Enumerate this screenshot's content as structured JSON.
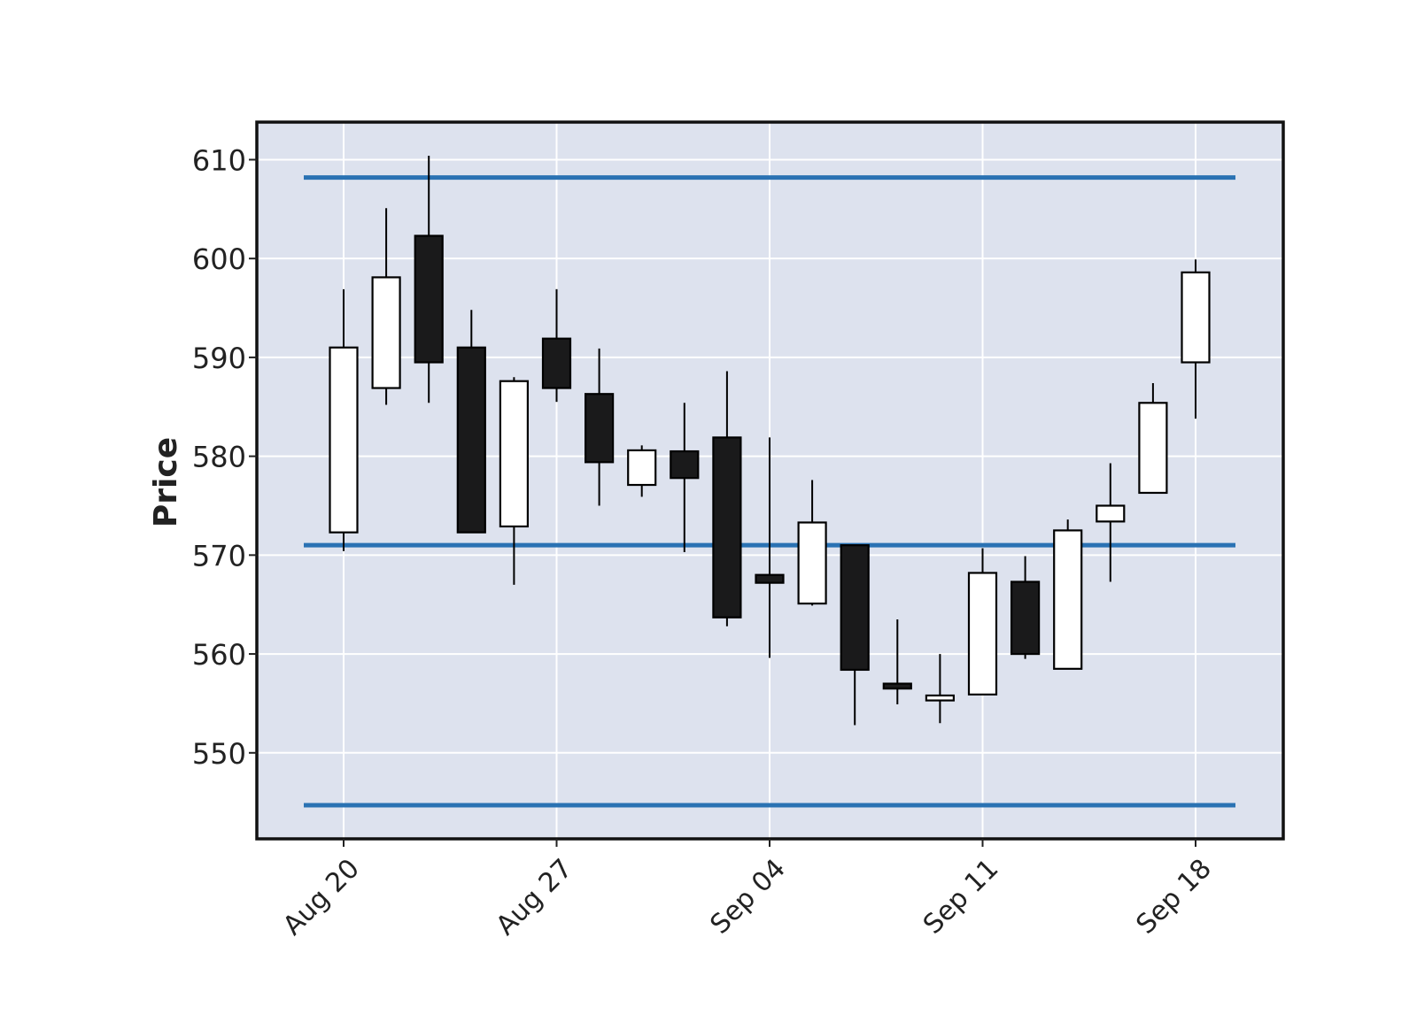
{
  "chart_data": {
    "type": "candlestick",
    "title": "",
    "xlabel": "",
    "ylabel": "Price",
    "ylim": [
      541.3,
      613.8
    ],
    "yticks": [
      550,
      560,
      570,
      580,
      590,
      600,
      610
    ],
    "x_tick_labels": [
      {
        "index": 0,
        "label": "Aug 20"
      },
      {
        "index": 5,
        "label": "Aug 27"
      },
      {
        "index": 10,
        "label": "Sep 04"
      },
      {
        "index": 15,
        "label": "Sep 11"
      },
      {
        "index": 20,
        "label": "Sep 18"
      }
    ],
    "grid": true,
    "up_color": "#ffffff",
    "down_color": "#1a1a1b",
    "edge_color": "#000000",
    "background_color": "#dde2ee",
    "hline_color": "#2a72b3",
    "horizontal_lines": [
      608.2,
      571.0,
      544.7
    ],
    "candles": [
      {
        "open": 572.3,
        "high": 596.9,
        "low": 570.4,
        "close": 591.0
      },
      {
        "open": 586.9,
        "high": 605.1,
        "low": 585.2,
        "close": 598.1
      },
      {
        "open": 602.3,
        "high": 610.4,
        "low": 585.4,
        "close": 589.5
      },
      {
        "open": 591.0,
        "high": 594.8,
        "low": 572.3,
        "close": 572.3
      },
      {
        "open": 572.9,
        "high": 588.0,
        "low": 567.0,
        "close": 587.6
      },
      {
        "open": 591.9,
        "high": 596.9,
        "low": 585.5,
        "close": 586.9
      },
      {
        "open": 586.3,
        "high": 590.9,
        "low": 575.0,
        "close": 579.4
      },
      {
        "open": 577.1,
        "high": 581.1,
        "low": 575.9,
        "close": 580.6
      },
      {
        "open": 580.5,
        "high": 585.4,
        "low": 570.3,
        "close": 577.8
      },
      {
        "open": 581.9,
        "high": 588.6,
        "low": 562.8,
        "close": 563.7
      },
      {
        "open": 568.0,
        "high": 581.9,
        "low": 559.6,
        "close": 567.2
      },
      {
        "open": 565.1,
        "high": 577.6,
        "low": 564.9,
        "close": 573.3
      },
      {
        "open": 571.0,
        "high": 571.0,
        "low": 552.8,
        "close": 558.4
      },
      {
        "open": 557.0,
        "high": 563.5,
        "low": 554.9,
        "close": 556.5
      },
      {
        "open": 555.3,
        "high": 560.0,
        "low": 553.0,
        "close": 555.8
      },
      {
        "open": 555.9,
        "high": 570.7,
        "low": 555.9,
        "close": 568.2
      },
      {
        "open": 567.3,
        "high": 569.9,
        "low": 559.5,
        "close": 560.0
      },
      {
        "open": 558.5,
        "high": 573.6,
        "low": 558.5,
        "close": 572.5
      },
      {
        "open": 573.4,
        "high": 579.3,
        "low": 567.3,
        "close": 575.0
      },
      {
        "open": 576.3,
        "high": 587.4,
        "low": 576.3,
        "close": 585.4
      },
      {
        "open": 589.5,
        "high": 599.9,
        "low": 583.8,
        "close": 598.6
      }
    ]
  }
}
